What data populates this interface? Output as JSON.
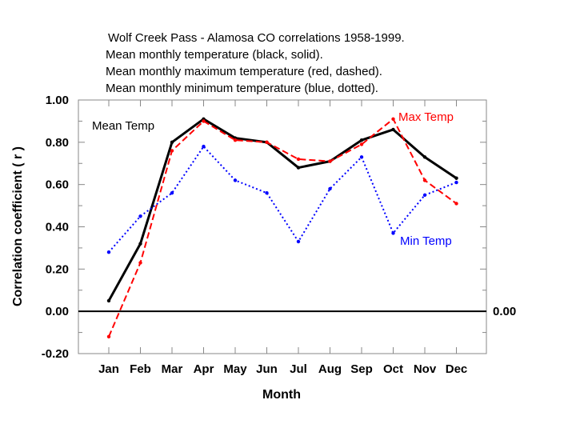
{
  "chart_data": {
    "type": "line",
    "title_lines": [
      "Wolf Creek Pass - Alamosa CO correlations 1958-1999.",
      "Mean monthly temperature (black, solid).",
      "Mean monthly maximum temperature (red, dashed).",
      "Mean monthly minimum temperature (blue, dotted)."
    ],
    "xlabel": "Month",
    "ylabel": "Correlation coefficient   ( r )",
    "categories": [
      "Jan",
      "Feb",
      "Mar",
      "Apr",
      "May",
      "Jun",
      "Jul",
      "Aug",
      "Sep",
      "Oct",
      "Nov",
      "Dec"
    ],
    "ylim": [
      -0.2,
      1.0
    ],
    "yticks": [
      "1.00",
      "0.80",
      "0.60",
      "0.40",
      "0.20",
      "0.00",
      "-0.20"
    ],
    "zero_line_label": "0.00",
    "series": [
      {
        "name": "Mean Temp",
        "color": "#000000",
        "style": "solid",
        "values": [
          0.05,
          0.32,
          0.8,
          0.91,
          0.82,
          0.8,
          0.68,
          0.71,
          0.81,
          0.86,
          0.73,
          0.63
        ]
      },
      {
        "name": "Max Temp",
        "color": "#ff0000",
        "style": "dashed",
        "values": [
          -0.12,
          0.23,
          0.76,
          0.9,
          0.81,
          0.8,
          0.72,
          0.71,
          0.79,
          0.91,
          0.62,
          0.51
        ]
      },
      {
        "name": "Min Temp",
        "color": "#0000ff",
        "style": "dotted",
        "values": [
          0.28,
          0.45,
          0.56,
          0.78,
          0.62,
          0.56,
          0.33,
          0.58,
          0.73,
          0.37,
          0.55,
          0.61
        ]
      }
    ]
  }
}
